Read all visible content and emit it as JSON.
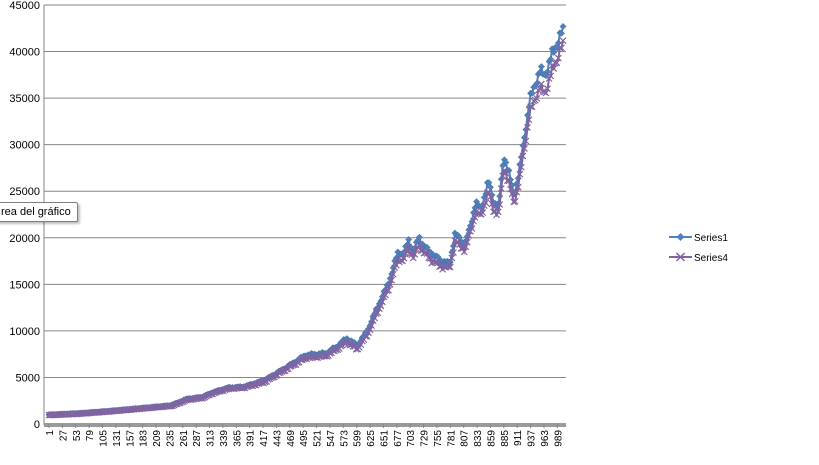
{
  "tooltip": {
    "text": "rea del gráfico"
  },
  "chart_data": {
    "type": "line",
    "title": "",
    "xlabel": "",
    "ylabel": "",
    "ylim": [
      0,
      45000
    ],
    "yticks": [
      0,
      5000,
      10000,
      15000,
      20000,
      25000,
      30000,
      35000,
      40000,
      45000
    ],
    "xlim": [
      1,
      1000
    ],
    "xticks": [
      1,
      27,
      53,
      79,
      105,
      131,
      157,
      183,
      209,
      235,
      261,
      287,
      313,
      339,
      365,
      391,
      417,
      443,
      469,
      495,
      521,
      547,
      573,
      599,
      625,
      651,
      677,
      703,
      729,
      755,
      781,
      807,
      833,
      859,
      885,
      911,
      937,
      963,
      989
    ],
    "grid": "horizontal",
    "legend_position": "right",
    "colors": {
      "Series1": "#4F81BD",
      "Series4": "#8064A2"
    },
    "x": [
      1,
      60,
      120,
      180,
      240,
      270,
      300,
      320,
      350,
      380,
      420,
      460,
      500,
      540,
      560,
      580,
      600,
      620,
      640,
      660,
      680,
      690,
      700,
      710,
      720,
      730,
      745,
      760,
      780,
      790,
      800,
      810,
      820,
      830,
      840,
      855,
      865,
      875,
      885,
      895,
      905,
      915,
      925,
      935,
      945,
      955,
      965,
      975,
      985,
      995,
      1000
    ],
    "series": [
      {
        "name": "Series1",
        "values": [
          1000,
          1150,
          1400,
          1700,
          2000,
          2700,
          2900,
          3400,
          3900,
          4000,
          4700,
          6000,
          7400,
          7600,
          8300,
          9200,
          8400,
          10000,
          12600,
          15000,
          18500,
          18200,
          19700,
          18400,
          20100,
          19000,
          18300,
          17600,
          17200,
          20400,
          19800,
          19300,
          21200,
          23800,
          23000,
          26000,
          24000,
          23200,
          29000,
          26800,
          24600,
          27000,
          31000,
          34500,
          36500,
          37800,
          37500,
          39000,
          40500,
          41800,
          42000
        ]
      },
      {
        "name": "Series4",
        "values": [
          950,
          1100,
          1350,
          1650,
          1950,
          2600,
          2800,
          3300,
          3800,
          3900,
          4500,
          5800,
          7100,
          7300,
          8000,
          8800,
          8000,
          9600,
          12100,
          14400,
          17700,
          17600,
          18900,
          17800,
          19300,
          18400,
          17600,
          17000,
          16700,
          19600,
          19100,
          18700,
          20600,
          22700,
          22300,
          24900,
          23100,
          22400,
          27800,
          25700,
          23800,
          26000,
          29800,
          33100,
          35000,
          36000,
          35600,
          37200,
          38800,
          40200,
          40500
        ]
      }
    ]
  }
}
